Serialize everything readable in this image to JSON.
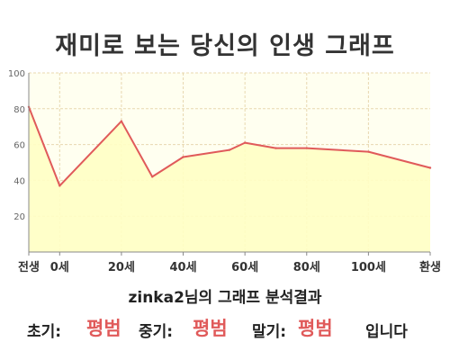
{
  "title": "재미로 보는 당신의 인생 그래프",
  "chart_data": {
    "type": "area",
    "title": "재미로 보는 당신의 인생 그래프",
    "x": [
      -10,
      0,
      20,
      30,
      40,
      55,
      60,
      70,
      80,
      100,
      120
    ],
    "values": [
      81,
      37,
      73,
      42,
      53,
      57,
      61,
      58,
      58,
      56,
      47
    ],
    "xticks": [
      {
        "x": -10,
        "label": "전생"
      },
      {
        "x": 0,
        "label": "0세"
      },
      {
        "x": 20,
        "label": "20세"
      },
      {
        "x": 40,
        "label": "40세"
      },
      {
        "x": 60,
        "label": "60세"
      },
      {
        "x": 80,
        "label": "80세"
      },
      {
        "x": 100,
        "label": "100세"
      },
      {
        "x": 120,
        "label": "환생"
      }
    ],
    "yticks": [
      20,
      40,
      60,
      80,
      100
    ],
    "xlim": [
      -10,
      120
    ],
    "ylim": [
      0,
      100
    ],
    "grid": true,
    "colors": {
      "line": "#e05a5a",
      "fill": "#ffffc4",
      "plot_bg": "#fffff0",
      "grid": "#e8d8b0",
      "axis": "#888888",
      "tick_text": "#666666"
    }
  },
  "summary": "zinka2님의 그래프 분석결과",
  "result": {
    "early_label": "초기:",
    "early_value": "평범",
    "mid_label": "중기:",
    "mid_value": "평범",
    "late_label": "말기:",
    "late_value": "평범",
    "suffix": "입니다"
  },
  "colors": {
    "accent": "#e05a5a"
  }
}
